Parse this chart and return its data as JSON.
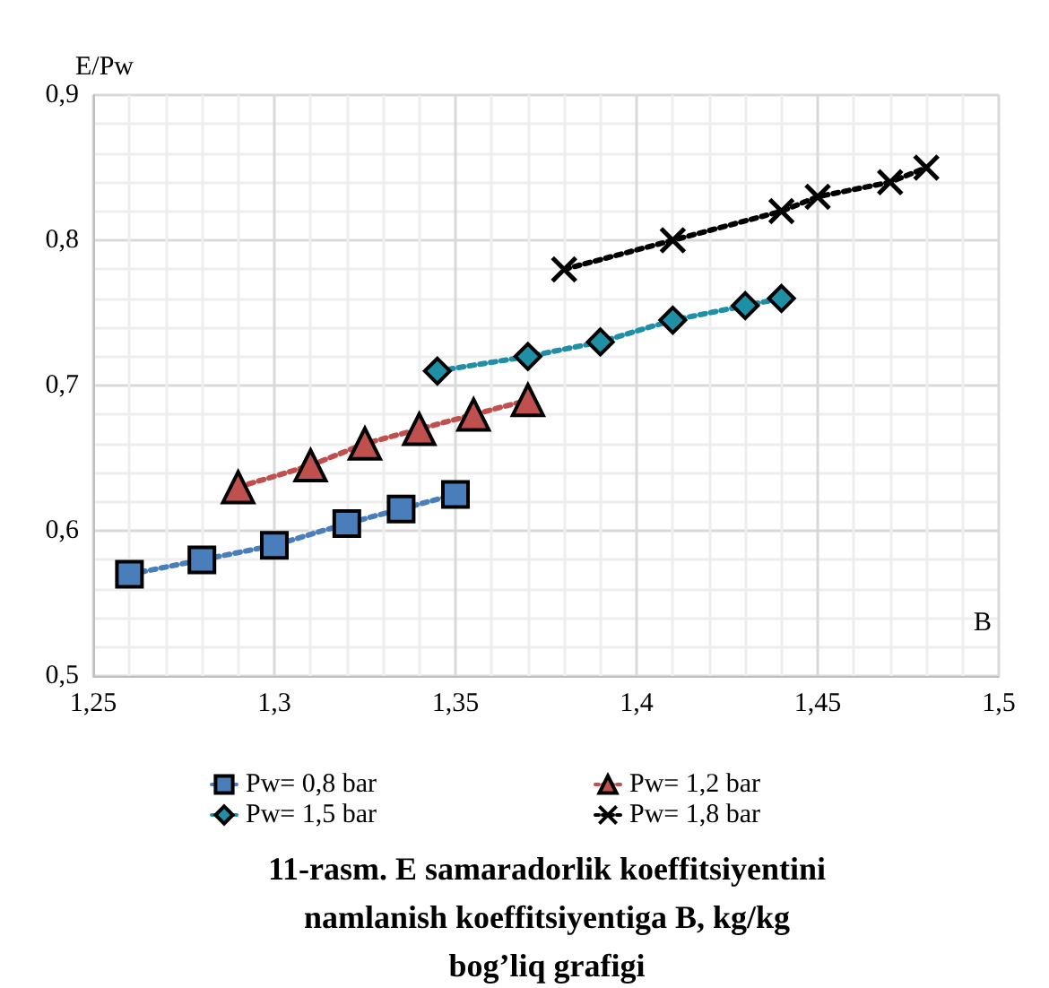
{
  "chart_data": {
    "type": "line",
    "title": "11-rasm. E samaradorlik koeffitsiyentini\nnamlanish koeffitsiyentiga B, kg/kg\nbog’liq grafigi",
    "xlabel": "B",
    "ylabel": "E/Pw",
    "xlim": [
      1.25,
      1.5
    ],
    "xticks": [
      {
        "value": 1.25,
        "label": "1,25"
      },
      {
        "value": 1.3,
        "label": "1,3"
      },
      {
        "value": 1.35,
        "label": "1,35"
      },
      {
        "value": 1.4,
        "label": "1,4"
      },
      {
        "value": 1.45,
        "label": "1,45"
      },
      {
        "value": 1.5,
        "label": "1,5"
      }
    ],
    "ylim": [
      0.5,
      0.9
    ],
    "yticks": [
      {
        "value": 0.5,
        "label": "0,5"
      },
      {
        "value": 0.6,
        "label": "0,6"
      },
      {
        "value": 0.7,
        "label": "0,7"
      },
      {
        "value": 0.8,
        "label": "0,8"
      },
      {
        "value": 0.9,
        "label": "0,9"
      }
    ],
    "grid": true,
    "legend": "bottom",
    "line_style": "dotted",
    "series": [
      {
        "name": "Pw= 0,8 bar",
        "color": "#4a7ebb",
        "marker": "square",
        "x": [
          1.26,
          1.28,
          1.3,
          1.32,
          1.335,
          1.35
        ],
        "values": [
          0.57,
          0.58,
          0.59,
          0.605,
          0.615,
          0.625
        ]
      },
      {
        "name": "Pw= 1,2 bar",
        "color": "#c0504d",
        "marker": "triangle",
        "x": [
          1.29,
          1.31,
          1.325,
          1.34,
          1.355,
          1.37
        ],
        "values": [
          0.63,
          0.645,
          0.66,
          0.67,
          0.68,
          0.69
        ]
      },
      {
        "name": "Pw= 1,5 bar",
        "color": "#1f8fa6",
        "marker": "diamond",
        "x": [
          1.345,
          1.37,
          1.39,
          1.41,
          1.43,
          1.44
        ],
        "values": [
          0.71,
          0.72,
          0.73,
          0.745,
          0.755,
          0.76
        ]
      },
      {
        "name": "Pw= 1,8 bar",
        "color": "#000000",
        "marker": "cross",
        "x": [
          1.38,
          1.41,
          1.44,
          1.45,
          1.47,
          1.48
        ],
        "values": [
          0.78,
          0.8,
          0.82,
          0.83,
          0.84,
          0.85
        ]
      }
    ]
  }
}
